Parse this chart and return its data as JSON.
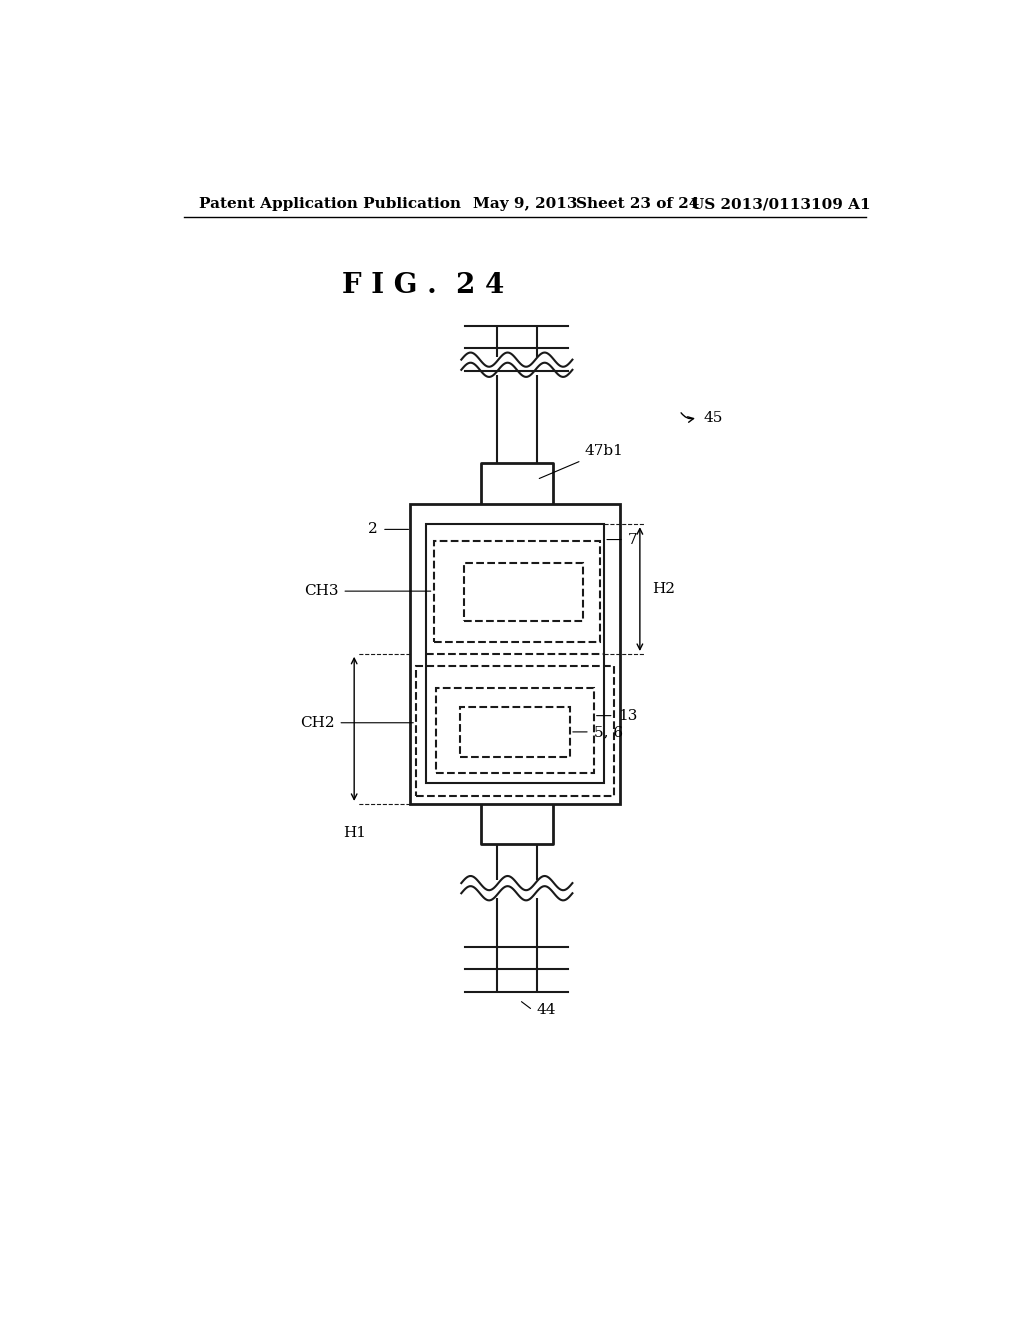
{
  "bg_color": "#ffffff",
  "header_text": "Patent Application Publication",
  "header_date": "May 9, 2013",
  "header_sheet": "Sheet 23 of 24",
  "header_patent": "US 2013/0113109 A1",
  "fig_label": "F I G .  2 4",
  "line_color": "#1a1a1a",
  "dashed_color": "#1a1a1a"
}
